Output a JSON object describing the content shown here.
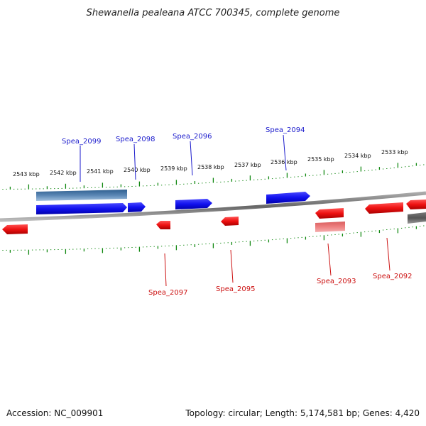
{
  "title": "Shewanella pealeana ATCC 700345, complete genome",
  "footer": {
    "accession": "Accession: NC_009901",
    "summary": "Topology: circular; Length: 5,174,581 bp; Genes: 4,420"
  },
  "ruler_labels": [
    "2543 kbp",
    "2542 kbp",
    "2541 kbp",
    "2540 kbp",
    "2539 kbp",
    "2538 kbp",
    "2537 kbp",
    "2536 kbp",
    "2535 kbp",
    "2534 kbp",
    "2533 kbp"
  ],
  "genes": {
    "spea_2099": "Spea_2099",
    "spea_2098": "Spea_2098",
    "spea_2096": "Spea_2096",
    "spea_2094": "Spea_2094",
    "spea_2097": "Spea_2097",
    "spea_2095": "Spea_2095",
    "spea_2093": "Spea_2093",
    "spea_2092": "Spea_2092"
  },
  "colors": {
    "forward_gene": "#1111ee",
    "reverse_gene": "#ee1111",
    "forward_label": "#1a1acc",
    "reverse_label": "#cc1111",
    "tick": "#118811",
    "backbone": "#888888"
  }
}
